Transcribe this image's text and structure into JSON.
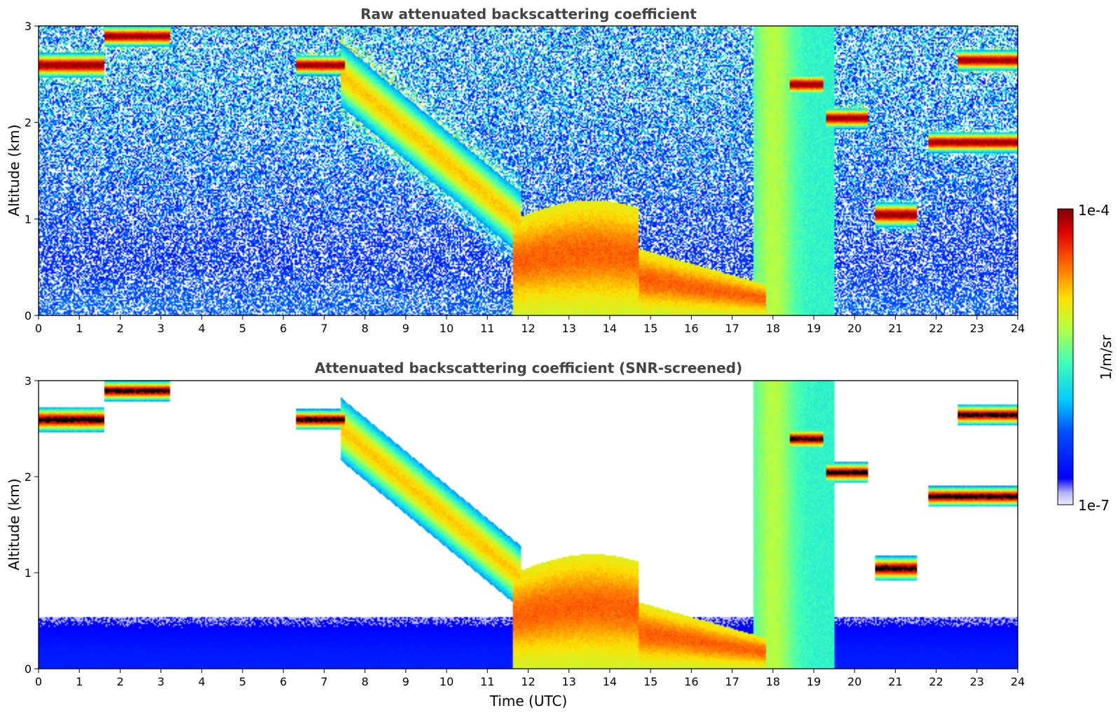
{
  "chart_data": [
    {
      "type": "heatmap",
      "title": "Raw attenuated backscattering coefficient",
      "xlabel": "",
      "ylabel": "Altitude (km)",
      "xlim": [
        0,
        24
      ],
      "ylim": [
        0,
        3
      ],
      "xticks": [
        "0",
        "1",
        "2",
        "3",
        "4",
        "5",
        "6",
        "7",
        "8",
        "9",
        "10",
        "11",
        "12",
        "13",
        "14",
        "15",
        "16",
        "17",
        "18",
        "19",
        "20",
        "21",
        "22",
        "23",
        "24"
      ],
      "yticks": [
        "0",
        "1",
        "2",
        "3"
      ],
      "colormap": "jet",
      "screened": false
    },
    {
      "type": "heatmap",
      "title": "Attenuated backscattering coefficient (SNR-screened)",
      "xlabel": "Time (UTC)",
      "ylabel": "Altitude (km)",
      "xlim": [
        0,
        24
      ],
      "ylim": [
        0,
        3
      ],
      "xticks": [
        "0",
        "1",
        "2",
        "3",
        "4",
        "5",
        "6",
        "7",
        "8",
        "9",
        "10",
        "11",
        "12",
        "13",
        "14",
        "15",
        "16",
        "17",
        "18",
        "19",
        "20",
        "21",
        "22",
        "23",
        "24"
      ],
      "yticks": [
        "0",
        "1",
        "2",
        "3"
      ],
      "colormap": "jet",
      "screened": true
    }
  ],
  "colorbar": {
    "label": "1/m/sr",
    "max_label": "1e-4",
    "min_label": "1e-7",
    "scale": "log",
    "range": [
      1e-07,
      0.0001
    ]
  },
  "features": {
    "cloud_layers": [
      {
        "t0": 0.0,
        "t1": 1.6,
        "alt": 2.6,
        "w": 0.12
      },
      {
        "t0": 1.6,
        "t1": 3.2,
        "alt": 2.9,
        "w": 0.1
      },
      {
        "t0": 6.3,
        "t1": 7.5,
        "alt": 2.6,
        "w": 0.1
      },
      {
        "t0": 18.4,
        "t1": 19.2,
        "alt": 2.4,
        "w": 0.1
      },
      {
        "t0": 19.3,
        "t1": 20.3,
        "alt": 2.05,
        "w": 0.1
      },
      {
        "t0": 21.8,
        "t1": 24.0,
        "alt": 1.8,
        "w": 0.1
      },
      {
        "t0": 22.5,
        "t1": 24.0,
        "alt": 2.65,
        "w": 0.1
      },
      {
        "t0": 20.5,
        "t1": 21.5,
        "alt": 1.05,
        "w": 0.12
      }
    ]
  }
}
